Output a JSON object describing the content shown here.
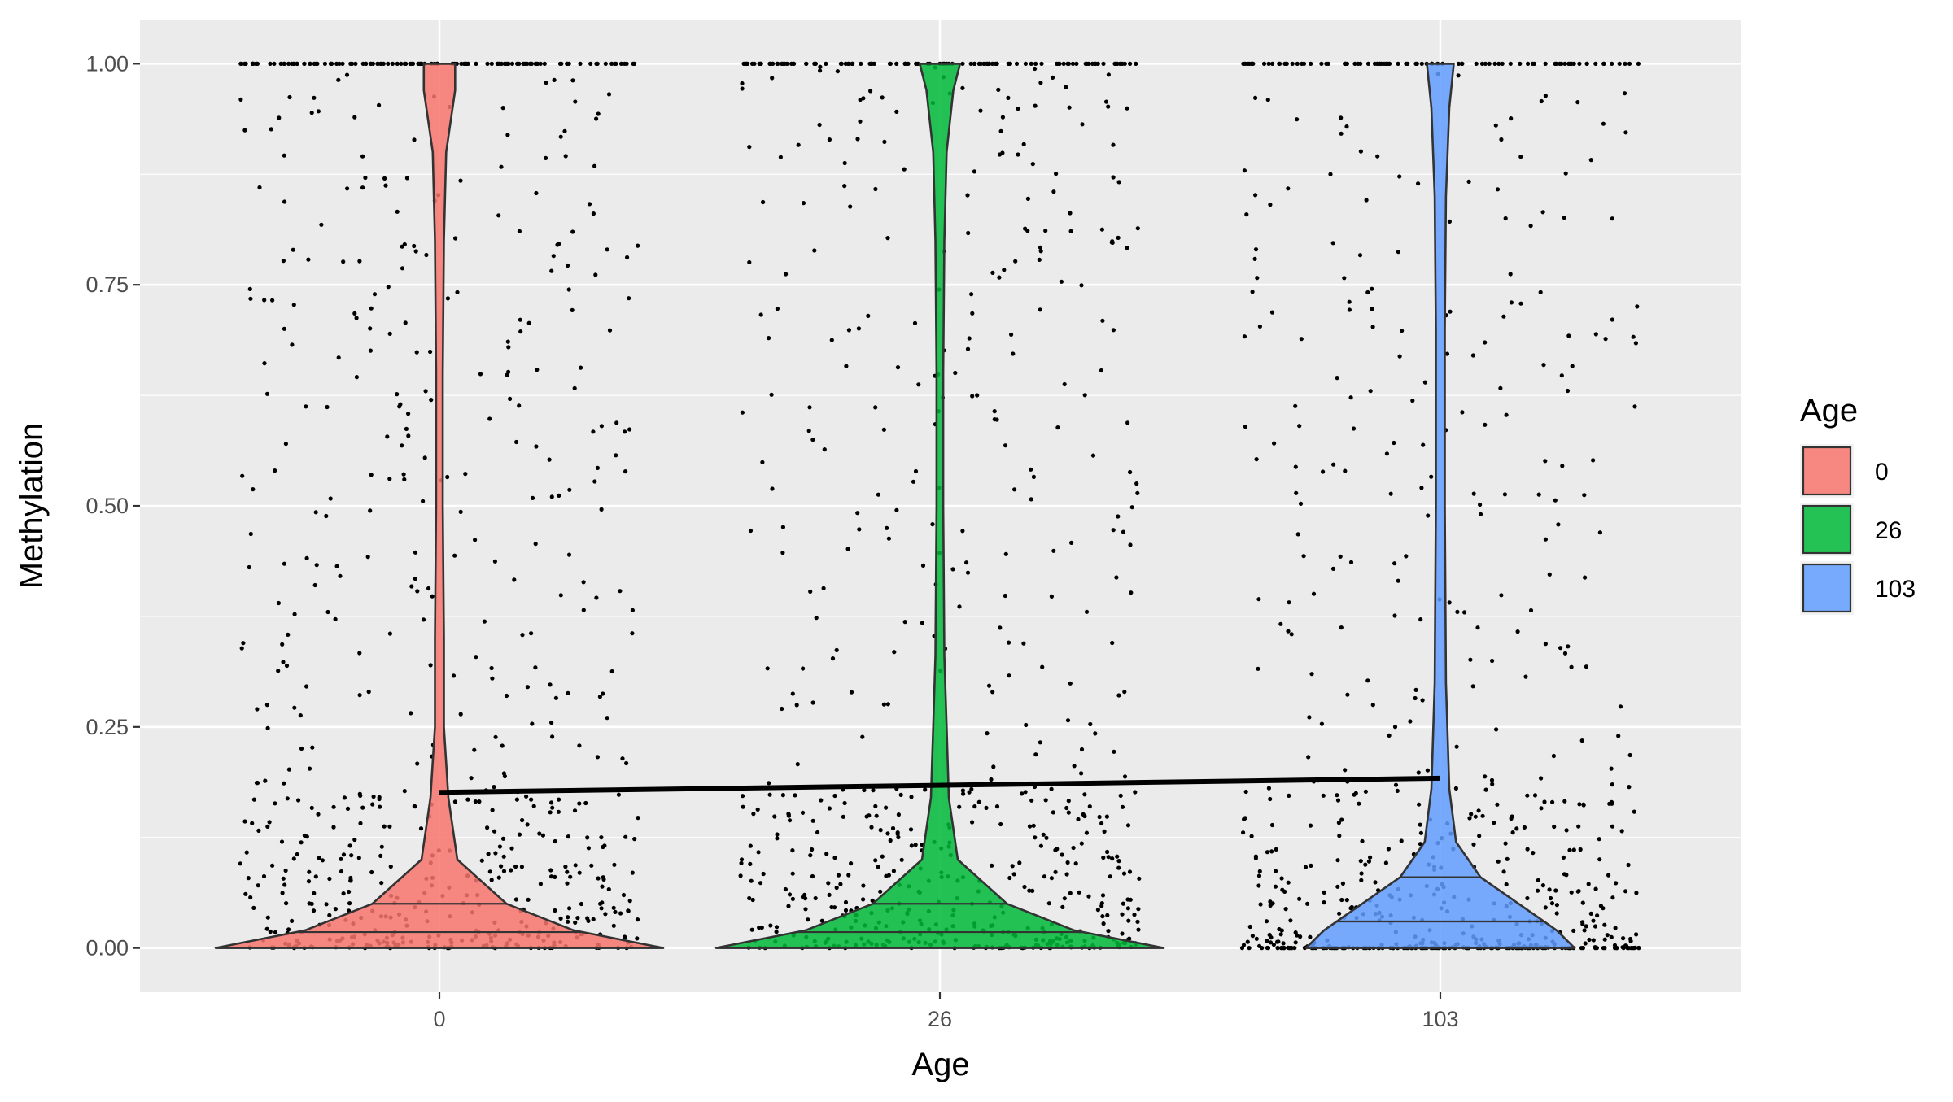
{
  "chart_data": {
    "type": "violin",
    "xlabel": "Age",
    "ylabel": "Methylation",
    "categories": [
      "0",
      "26",
      "103"
    ],
    "ylim": [
      -0.05,
      1.05
    ],
    "y_ticks": [
      "0.00",
      "0.25",
      "0.50",
      "0.75",
      "1.00"
    ],
    "y_tick_values": [
      0,
      0.25,
      0.5,
      0.75,
      1.0
    ],
    "grid": true,
    "legend": {
      "title": "Age",
      "position": "right",
      "entries": [
        {
          "label": "0",
          "color": "#F8766D"
        },
        {
          "label": "26",
          "color": "#00BA38"
        },
        {
          "label": "103",
          "color": "#619CFF"
        }
      ]
    },
    "series": [
      {
        "category": "0",
        "color": "#F8766D",
        "quantiles": [
          0.0,
          0.018,
          0.05
        ],
        "violin_profile": [
          {
            "y": 0.0,
            "w": 1.0
          },
          {
            "y": 0.02,
            "w": 0.6
          },
          {
            "y": 0.05,
            "w": 0.3
          },
          {
            "y": 0.1,
            "w": 0.08
          },
          {
            "y": 0.17,
            "w": 0.04
          },
          {
            "y": 0.25,
            "w": 0.02
          },
          {
            "y": 0.35,
            "w": 0.02
          },
          {
            "y": 0.5,
            "w": 0.015
          },
          {
            "y": 0.65,
            "w": 0.015
          },
          {
            "y": 0.8,
            "w": 0.02
          },
          {
            "y": 0.9,
            "w": 0.03
          },
          {
            "y": 0.97,
            "w": 0.07
          },
          {
            "y": 1.0,
            "w": 0.07
          }
        ]
      },
      {
        "category": "26",
        "color": "#00BA38",
        "quantiles": [
          0.0,
          0.018,
          0.05
        ],
        "violin_profile": [
          {
            "y": 0.0,
            "w": 1.0
          },
          {
            "y": 0.02,
            "w": 0.6
          },
          {
            "y": 0.05,
            "w": 0.3
          },
          {
            "y": 0.1,
            "w": 0.08
          },
          {
            "y": 0.17,
            "w": 0.04
          },
          {
            "y": 0.25,
            "w": 0.03
          },
          {
            "y": 0.33,
            "w": 0.02
          },
          {
            "y": 0.5,
            "w": 0.015
          },
          {
            "y": 0.65,
            "w": 0.015
          },
          {
            "y": 0.8,
            "w": 0.02
          },
          {
            "y": 0.9,
            "w": 0.03
          },
          {
            "y": 0.97,
            "w": 0.06
          },
          {
            "y": 1.0,
            "w": 0.09
          }
        ]
      },
      {
        "category": "103",
        "color": "#619CFF",
        "quantiles": [
          0.0,
          0.03,
          0.08
        ],
        "violin_profile": [
          {
            "y": 0.0,
            "w": 0.6
          },
          {
            "y": 0.02,
            "w": 0.52
          },
          {
            "y": 0.05,
            "w": 0.35
          },
          {
            "y": 0.08,
            "w": 0.18
          },
          {
            "y": 0.12,
            "w": 0.07
          },
          {
            "y": 0.18,
            "w": 0.04
          },
          {
            "y": 0.3,
            "w": 0.025
          },
          {
            "y": 0.5,
            "w": 0.02
          },
          {
            "y": 0.7,
            "w": 0.02
          },
          {
            "y": 0.85,
            "w": 0.025
          },
          {
            "y": 0.95,
            "w": 0.04
          },
          {
            "y": 1.0,
            "w": 0.06
          }
        ]
      }
    ],
    "trend_line": {
      "x_start": "0",
      "y_start": 0.176,
      "x_end": "103",
      "y_end": 0.192
    }
  }
}
